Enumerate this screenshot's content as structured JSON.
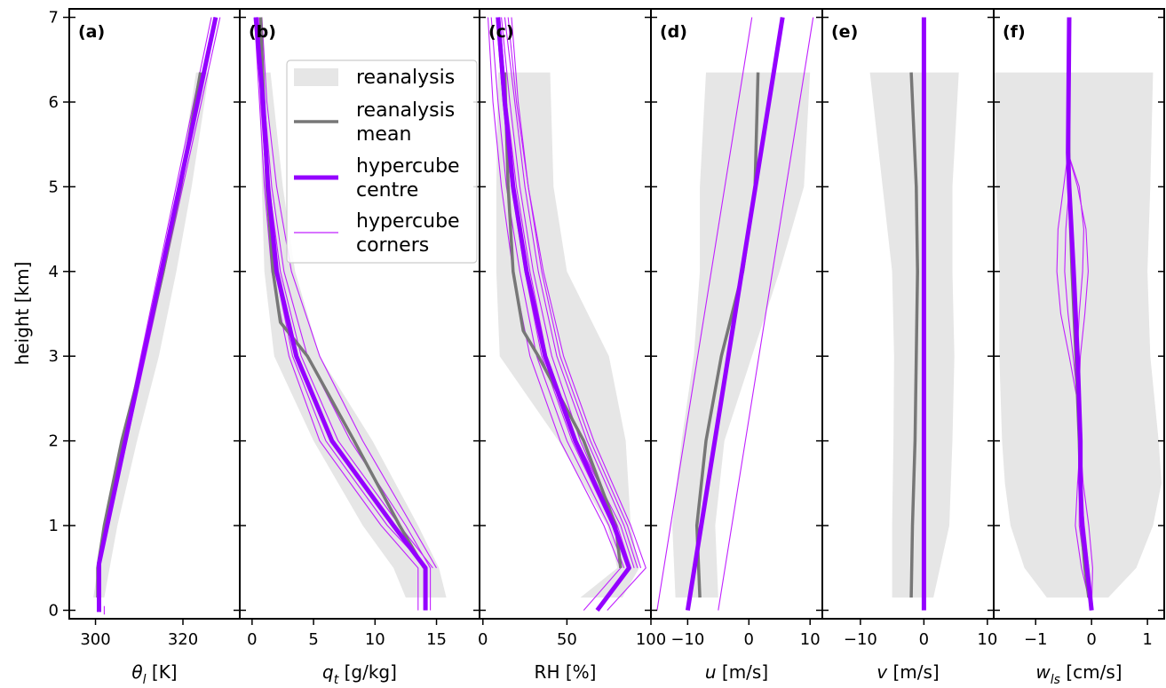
{
  "figure": {
    "ylabel": "height [km]",
    "y_ticks": [
      "0",
      "1",
      "2",
      "3",
      "4",
      "5",
      "6",
      "7"
    ],
    "legend": {
      "reanalysis": "reanalysis",
      "reanalysis_mean_l1": "reanalysis",
      "reanalysis_mean_l2": "mean",
      "centre_l1": "hypercube",
      "centre_l2": "centre",
      "corners_l1": "hypercube",
      "corners_l2": "corners"
    },
    "colors": {
      "centre": "#9400ff",
      "corners": "#c020ff",
      "mean": "#777777",
      "band": "#e6e6e6"
    }
  },
  "chart_data": [
    {
      "type": "line",
      "panel": "(a)",
      "xlabel_sym": "θ",
      "xlabel_sub": "l",
      "xlabel_unit": " [K]",
      "xlim": [
        294,
        333
      ],
      "ylim": [
        -0.1,
        7.1
      ],
      "xticks": [
        300,
        320
      ],
      "xtick_labels": [
        "300",
        "320"
      ],
      "band": {
        "h": [
          0.15,
          1,
          2,
          3,
          4,
          5,
          6.35
        ],
        "lo": [
          299.5,
          302,
          306,
          310.5,
          315,
          319,
          323
        ],
        "hi": [
          302,
          305,
          309.5,
          314.5,
          318.5,
          322,
          326
        ]
      },
      "mean": {
        "h": [
          0.15,
          0.5,
          1,
          2,
          3,
          4,
          5,
          6.35
        ],
        "x": [
          300.5,
          300.5,
          302,
          306,
          311,
          315.5,
          319.5,
          324
        ]
      },
      "centre": {
        "h": [
          -0.02,
          0.55,
          7.0
        ],
        "x": [
          300.8,
          300.8,
          327.5
        ]
      },
      "corners": [
        {
          "h": [
            0,
            0.55,
            7.0
          ],
          "x": [
            300.5,
            300.5,
            326.5
          ]
        },
        {
          "h": [
            0,
            0.55,
            7.0
          ],
          "x": [
            301,
            301,
            328.5
          ]
        },
        {
          "h": [
            -0.05,
            0.05
          ],
          "x": [
            302,
            302
          ]
        }
      ]
    },
    {
      "type": "line",
      "panel": "(b)",
      "xlabel_sym": "q",
      "xlabel_sub": "t",
      "xlabel_unit": " [g/kg]",
      "xlim": [
        -1,
        18.5
      ],
      "ylim": [
        -0.1,
        7.1
      ],
      "xticks": [
        0,
        5,
        10,
        15
      ],
      "xtick_labels": [
        "0",
        "5",
        "10",
        "15"
      ],
      "band": {
        "h": [
          0.15,
          0.5,
          1,
          2,
          3,
          4,
          5,
          6.35
        ],
        "lo": [
          12.5,
          11.5,
          9,
          5,
          1.8,
          1,
          0.8,
          0.6
        ],
        "hi": [
          15.8,
          15.2,
          13.5,
          9.8,
          5.5,
          3.5,
          2.5,
          1.5
        ]
      },
      "mean": {
        "h": [
          0.5,
          1,
          2,
          3,
          3.4,
          4,
          5,
          6.2,
          7.0
        ],
        "x": [
          14,
          12,
          8.3,
          4.5,
          2.3,
          1.7,
          1.2,
          0.9,
          0.7
        ]
      },
      "centre": {
        "h": [
          0,
          0.5,
          1,
          2,
          3,
          4,
          5,
          6,
          7.0
        ],
        "x": [
          14.1,
          14.1,
          11.5,
          6.5,
          3.6,
          2,
          1.3,
          0.9,
          0.3
        ]
      },
      "corners": [
        {
          "h": [
            0,
            0.5,
            1,
            2,
            3,
            4,
            5,
            6,
            7.0
          ],
          "x": [
            13.5,
            13.5,
            10.5,
            5.5,
            3,
            1.6,
            1,
            0.6,
            0.2
          ]
        },
        {
          "h": [
            0,
            0.5,
            1,
            2,
            3,
            4,
            5,
            6,
            7.0
          ],
          "x": [
            14.5,
            14.5,
            12.5,
            8,
            4.5,
            2.6,
            1.6,
            1.0,
            0.5
          ]
        },
        {
          "h": [
            0.5,
            1,
            2,
            3,
            4,
            5,
            6,
            7.0
          ],
          "x": [
            15,
            13,
            9,
            5.5,
            3.2,
            2,
            1.2,
            0.8
          ]
        },
        {
          "h": [
            0.5,
            1,
            2,
            3,
            4,
            5,
            6,
            7.0
          ],
          "x": [
            14.2,
            11,
            6,
            3.3,
            1.9,
            1.2,
            0.7,
            0.4
          ]
        },
        {
          "h": [
            0.5,
            1,
            2,
            3,
            4,
            5,
            6,
            7.0
          ],
          "x": [
            14.7,
            12,
            7,
            4,
            2.3,
            1.4,
            0.9,
            0.6
          ]
        }
      ]
    },
    {
      "type": "line",
      "panel": "(c)",
      "xlabel_sym": "",
      "xlabel_sub": "",
      "xlabel_unit": "RH [%]",
      "xlim": [
        -2,
        100
      ],
      "ylim": [
        -0.1,
        7.1
      ],
      "xticks": [
        0,
        50,
        100
      ],
      "xtick_labels": [
        "0",
        "50",
        "100"
      ],
      "band": {
        "h": [
          0.15,
          0.5,
          1,
          2,
          3,
          4,
          5,
          6.35
        ],
        "lo": [
          58,
          80,
          74,
          45,
          10,
          8,
          8,
          9
        ],
        "hi": [
          83,
          93,
          88,
          85,
          75,
          50,
          42,
          40
        ]
      },
      "mean": {
        "h": [
          0.5,
          1,
          2,
          3,
          3.3,
          4,
          5,
          6.35
        ],
        "x": [
          82,
          79,
          60,
          33,
          24,
          18,
          15,
          13
        ]
      },
      "centre": {
        "h": [
          0,
          0.5,
          1,
          2,
          3,
          4,
          5,
          6,
          7.0
        ],
        "x": [
          68,
          87,
          78,
          55,
          37,
          26,
          18,
          13,
          9
        ]
      },
      "corners": [
        {
          "h": [
            0,
            0.5,
            1,
            2,
            3,
            4,
            5,
            6,
            7.0
          ],
          "x": [
            60,
            82,
            72,
            46,
            28,
            18,
            11,
            6,
            3
          ]
        },
        {
          "h": [
            0,
            0.5,
            1,
            2,
            3,
            4,
            5,
            6,
            7.0
          ],
          "x": [
            74,
            97,
            88,
            66,
            48,
            36,
            27,
            20,
            15
          ]
        },
        {
          "h": [
            0.5,
            1,
            2,
            3,
            4,
            5,
            6,
            7.0
          ],
          "x": [
            84,
            75,
            50,
            32,
            22,
            14,
            9,
            5
          ]
        },
        {
          "h": [
            0.5,
            1,
            2,
            3,
            4,
            5,
            6,
            7.0
          ],
          "x": [
            88,
            80,
            58,
            41,
            30,
            22,
            16,
            11
          ]
        },
        {
          "h": [
            0.5,
            1,
            2,
            3,
            4,
            5,
            6,
            7.0
          ],
          "x": [
            92,
            84,
            62,
            44,
            33,
            25,
            19,
            13
          ]
        },
        {
          "h": [
            0.5,
            1,
            2,
            3,
            4,
            5,
            6,
            7.0
          ],
          "x": [
            86,
            77,
            53,
            35,
            25,
            17,
            12,
            8
          ]
        },
        {
          "h": [
            0.5,
            1,
            2,
            3,
            4,
            5,
            6,
            7.0
          ],
          "x": [
            90,
            82,
            56,
            38,
            28,
            20,
            14,
            10
          ]
        },
        {
          "h": [
            0.5,
            1,
            2,
            3,
            4,
            5,
            6,
            7.0
          ],
          "x": [
            94,
            86,
            64,
            46,
            35,
            27,
            21,
            17
          ]
        }
      ]
    },
    {
      "type": "line",
      "panel": "(d)",
      "xlabel_sym": "u",
      "xlabel_sub": "",
      "xlabel_unit": " [m/s]",
      "xlim": [
        -16,
        12
      ],
      "ylim": [
        -0.1,
        7.1
      ],
      "xticks": [
        -10,
        0,
        10
      ],
      "xtick_labels": [
        "−10",
        "0",
        "10"
      ],
      "band": {
        "h": [
          0.15,
          1,
          2,
          3,
          4,
          5,
          6.35
        ],
        "lo": [
          -12,
          -12.5,
          -11,
          -9,
          -8,
          -8,
          -7
        ],
        "hi": [
          -5,
          -5.5,
          -4,
          0.5,
          5,
          9,
          10
        ]
      },
      "mean": {
        "h": [
          0.15,
          1,
          2,
          3,
          4,
          5,
          6.35
        ],
        "x": [
          -8,
          -8.5,
          -7,
          -4.5,
          -1,
          1,
          1.5
        ]
      },
      "centre": {
        "h": [
          0,
          7.0
        ],
        "x": [
          -10,
          5.5
        ]
      },
      "corners": [
        {
          "h": [
            0,
            7.0
          ],
          "x": [
            -15,
            0.5
          ]
        },
        {
          "h": [
            0,
            7.0
          ],
          "x": [
            -5,
            10.5
          ]
        }
      ]
    },
    {
      "type": "line",
      "panel": "(e)",
      "xlabel_sym": "v",
      "xlabel_sub": "",
      "xlabel_unit": " [m/s]",
      "xlim": [
        -16,
        11
      ],
      "ylim": [
        -0.1,
        7.1
      ],
      "xticks": [
        -10,
        0,
        10
      ],
      "xtick_labels": [
        "−10",
        "0",
        "10"
      ],
      "band": {
        "h": [
          0.15,
          1,
          2,
          3,
          4,
          5,
          6.35
        ],
        "lo": [
          -5,
          -5,
          -4.8,
          -4.7,
          -5,
          -6.5,
          -8.5
        ],
        "hi": [
          1.5,
          4,
          4.5,
          4.8,
          4.5,
          4.5,
          5.5
        ]
      },
      "mean": {
        "h": [
          0.15,
          1,
          2,
          3,
          4,
          5,
          6.35
        ],
        "x": [
          -2,
          -1.8,
          -1.4,
          -1.2,
          -1,
          -1.2,
          -2
        ]
      },
      "centre": {
        "h": [
          0,
          7.0
        ],
        "x": [
          0,
          0
        ]
      },
      "corners": []
    },
    {
      "type": "line",
      "panel": "(f)",
      "xlabel_sym": "w",
      "xlabel_sub": "ls",
      "xlabel_unit": " [cm/s]",
      "xlim": [
        -1.75,
        1.3
      ],
      "ylim": [
        -0.1,
        7.1
      ],
      "xticks": [
        -1,
        0,
        1
      ],
      "xtick_labels": [
        "−1",
        "0",
        "1"
      ],
      "band": {
        "h": [
          0.15,
          0.5,
          1,
          1.5,
          2,
          3,
          4,
          5,
          6.35
        ],
        "lo": [
          -0.8,
          -1.2,
          -1.45,
          -1.55,
          -1.6,
          -1.65,
          -1.65,
          -1.7,
          -1.75
        ],
        "hi": [
          0.3,
          0.8,
          1.1,
          1.25,
          1.2,
          1.05,
          1,
          1.05,
          1.1
        ]
      },
      "mean": {
        "h": [
          0.15,
          0.5,
          1,
          2,
          3,
          4,
          5,
          6.35
        ],
        "x": [
          -0.05,
          -0.12,
          -0.18,
          -0.22,
          -0.28,
          -0.35,
          -0.4,
          -0.42
        ]
      },
      "centre": {
        "h": [
          0,
          0.5,
          1,
          1.5,
          2,
          3,
          4,
          5,
          5.4,
          7.0
        ],
        "x": [
          0,
          -0.08,
          -0.17,
          -0.2,
          -0.2,
          -0.25,
          -0.32,
          -0.4,
          -0.42,
          -0.4
        ]
      },
      "corners": [
        {
          "h": [
            0,
            0.5,
            1,
            1.5,
            2,
            2.5,
            3,
            3.5,
            4,
            4.5,
            5,
            5.4
          ],
          "x": [
            0,
            0.02,
            -0.05,
            -0.15,
            -0.2,
            -0.24,
            -0.26,
            -0.22,
            -0.16,
            -0.14,
            -0.22,
            -0.42
          ]
        },
        {
          "h": [
            0,
            0.5,
            1,
            1.5,
            2,
            2.5,
            3,
            3.5,
            4,
            4.5,
            5,
            5.4
          ],
          "x": [
            0,
            -0.18,
            -0.29,
            -0.25,
            -0.2,
            -0.26,
            -0.4,
            -0.55,
            -0.62,
            -0.6,
            -0.5,
            -0.42
          ]
        },
        {
          "h": [
            0,
            0.5,
            1,
            1.5,
            2,
            2.5,
            3,
            3.5,
            4,
            4.5,
            5,
            5.4
          ],
          "x": [
            0,
            -0.05,
            -0.13,
            -0.2,
            -0.22,
            -0.23,
            -0.2,
            -0.12,
            -0.06,
            -0.1,
            -0.25,
            -0.42
          ]
        },
        {
          "h": [
            0,
            0.5,
            1,
            1.5,
            2,
            2.5,
            3,
            3.5,
            4,
            4.5,
            5,
            5.4
          ],
          "x": [
            0,
            -0.12,
            -0.22,
            -0.22,
            -0.2,
            -0.25,
            -0.33,
            -0.42,
            -0.48,
            -0.46,
            -0.4,
            -0.42
          ]
        }
      ]
    }
  ]
}
